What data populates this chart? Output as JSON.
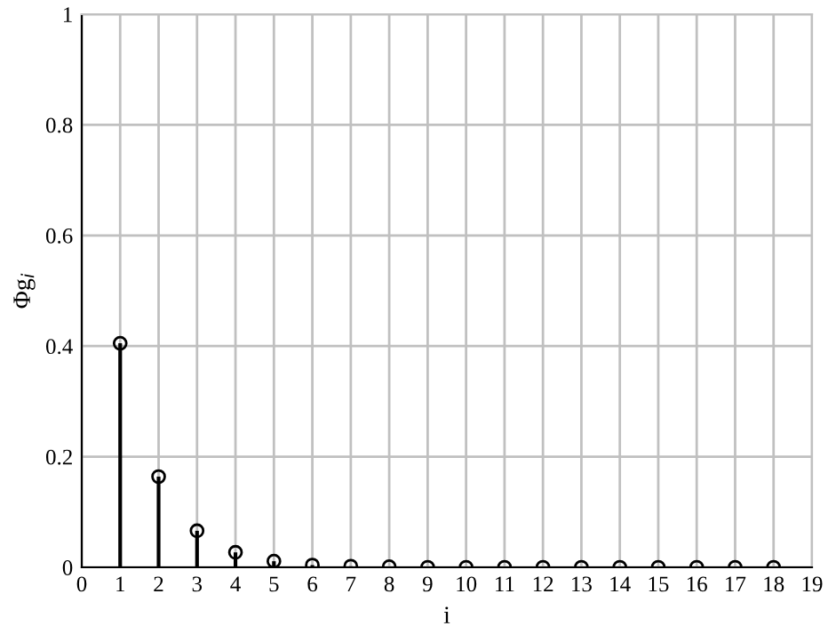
{
  "chart_data": {
    "type": "lollipop",
    "xlabel": "i",
    "ylabel": "Φg$_{i}$",
    "x": [
      1,
      2,
      3,
      4,
      5,
      6,
      7,
      8,
      9,
      10,
      11,
      12,
      13,
      14,
      15,
      16,
      17,
      18
    ],
    "series": [
      {
        "color": "#000000",
        "values": [
          0.405,
          0.164,
          0.066,
          0.027,
          0.011,
          0.004,
          0.002,
          0.001,
          0,
          0,
          0,
          0,
          0,
          0,
          0,
          0,
          0,
          0
        ]
      }
    ],
    "xlim": [
      0,
      19
    ],
    "xticks": [
      0,
      1,
      2,
      3,
      4,
      5,
      6,
      7,
      8,
      9,
      10,
      11,
      12,
      13,
      14,
      15,
      16,
      17,
      18,
      19
    ],
    "ylim": [
      0,
      1
    ],
    "yticks": [
      0,
      0.2,
      0.4,
      0.6,
      0.8,
      1
    ],
    "grid": true,
    "marker": "circle"
  }
}
